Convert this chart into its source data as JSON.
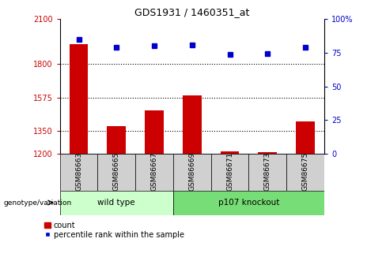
{
  "title": "GDS1931 / 1460351_at",
  "samples": [
    "GSM86663",
    "GSM86665",
    "GSM86667",
    "GSM86669",
    "GSM86671",
    "GSM86673",
    "GSM86675"
  ],
  "count_values": [
    1930,
    1385,
    1490,
    1590,
    1215,
    1210,
    1415
  ],
  "percentile_values": [
    85,
    79,
    80,
    81,
    74,
    74.5,
    79
  ],
  "ylim_left": [
    1200,
    2100
  ],
  "ylim_right": [
    0,
    100
  ],
  "yticks_left": [
    1200,
    1350,
    1575,
    1800,
    2100
  ],
  "ytick_labels_left": [
    "1200",
    "1350",
    "1575",
    "1800",
    "2100"
  ],
  "yticks_right": [
    0,
    25,
    50,
    75,
    100
  ],
  "ytick_labels_right": [
    "0",
    "25",
    "50",
    "75",
    "100%"
  ],
  "hlines": [
    1350,
    1575,
    1800
  ],
  "bar_color": "#cc0000",
  "dot_color": "#0000cc",
  "bar_width": 0.5,
  "base_value": 1200,
  "legend_count_label": "count",
  "legend_pct_label": "percentile rank within the sample",
  "genotype_label": "genotype/variation",
  "left_axis_color": "#cc0000",
  "right_axis_color": "#0000cc",
  "group_spans": [
    {
      "label": "wild type",
      "start": 0,
      "end": 2,
      "color": "#ccffcc"
    },
    {
      "label": "p107 knockout",
      "start": 3,
      "end": 6,
      "color": "#77dd77"
    }
  ],
  "sample_box_color": "#d0d0d0",
  "bg_color": "#ffffff"
}
